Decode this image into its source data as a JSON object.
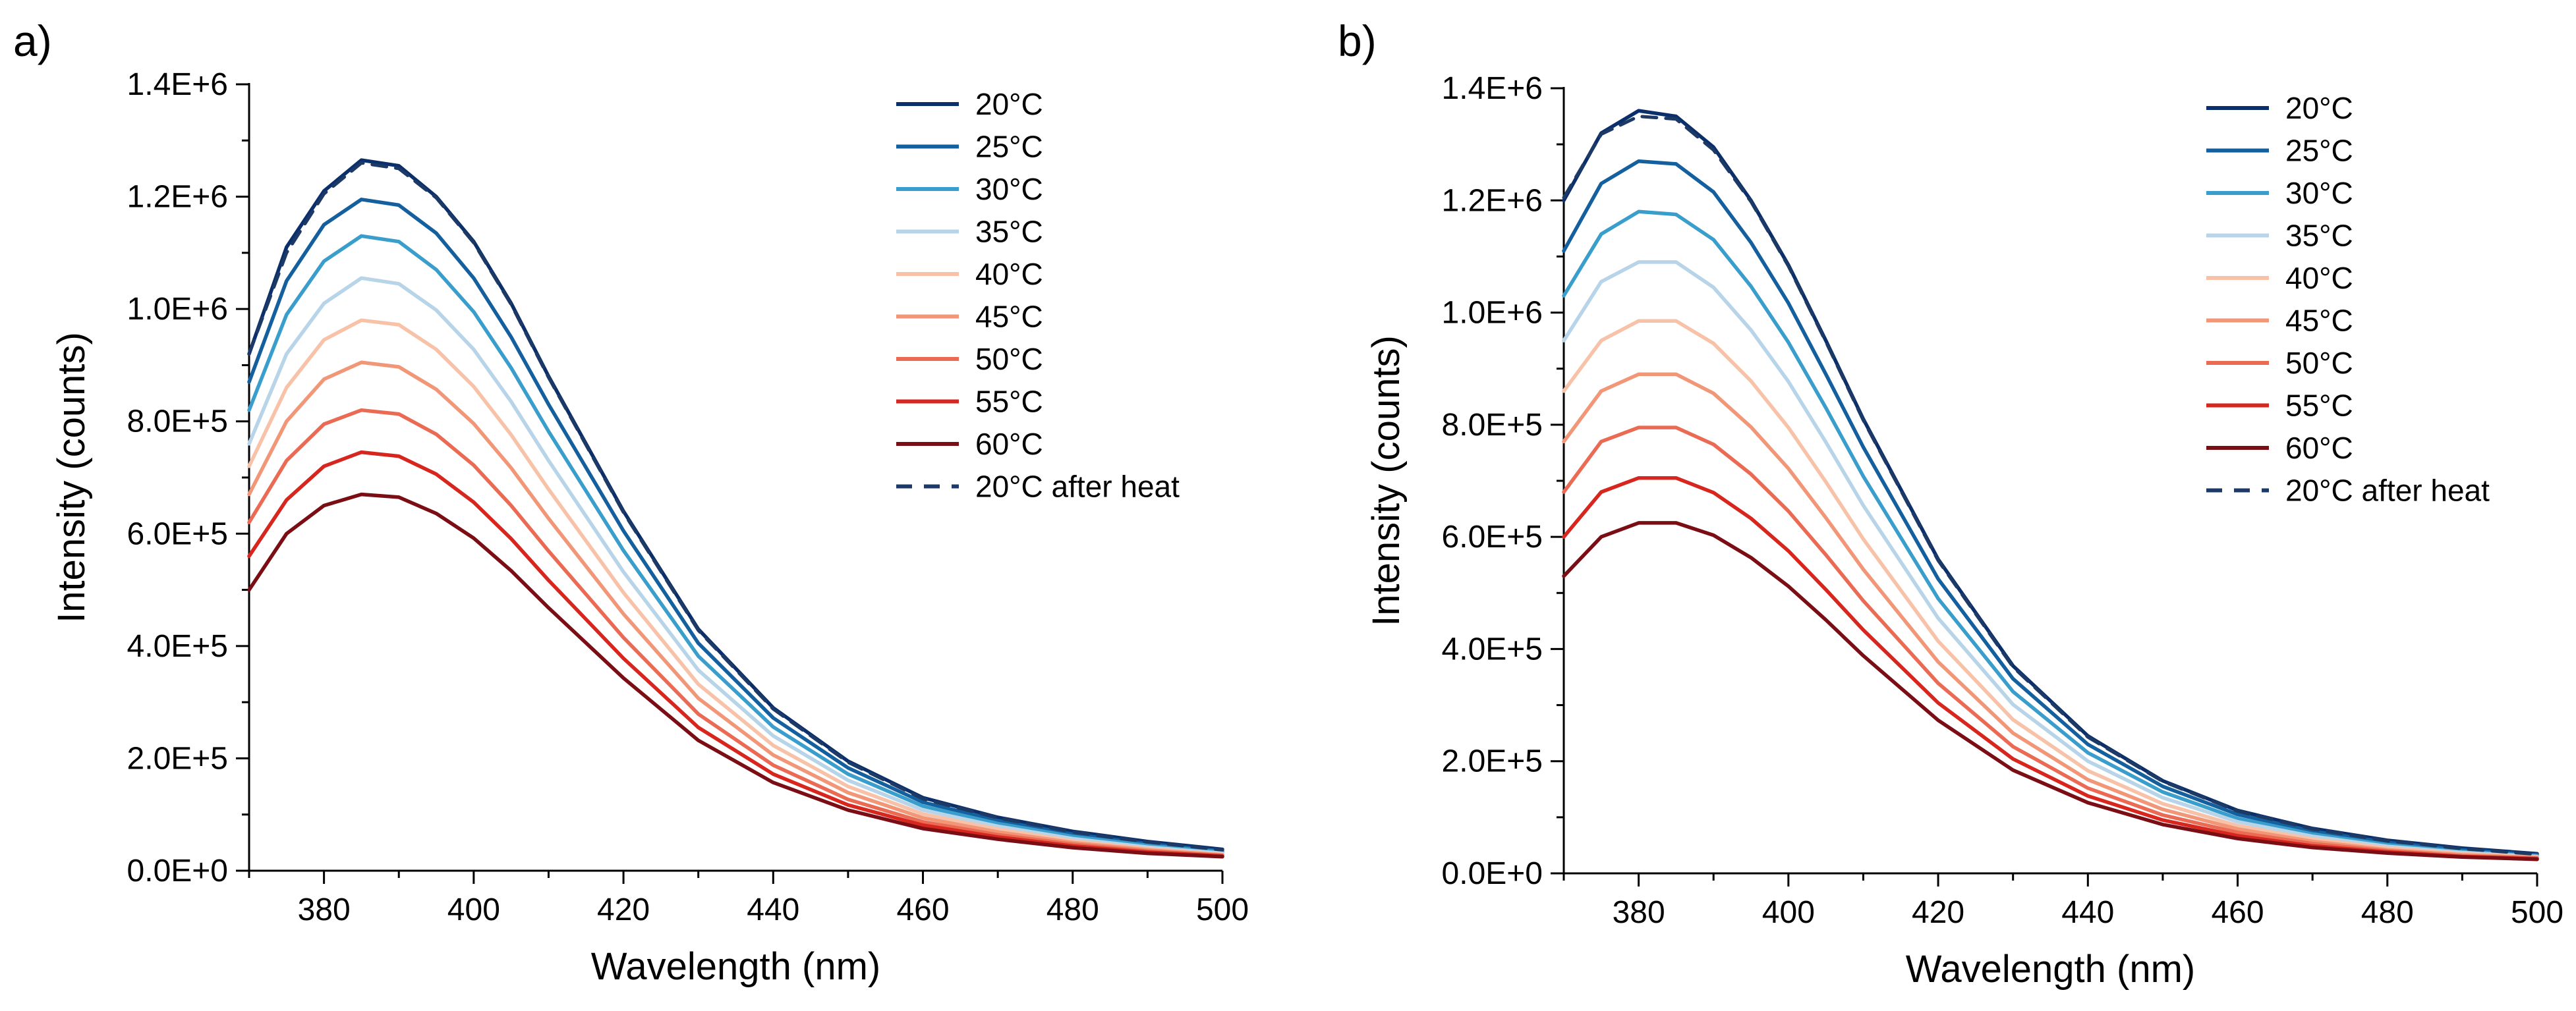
{
  "figure_labels": {
    "panel_a": "a)",
    "panel_b": "b)"
  },
  "chart_data": [
    {
      "type": "line",
      "panel": "a)",
      "xlabel": "Wavelength (nm)",
      "ylabel": "Intensity (counts)",
      "xlim": [
        370,
        500
      ],
      "ylim": [
        0,
        1400000
      ],
      "xticks": [
        380,
        400,
        420,
        440,
        460,
        480,
        500
      ],
      "xtick_labels": [
        "380",
        "400",
        "420",
        "440",
        "460",
        "480",
        "500"
      ],
      "yticks": [
        0,
        200000,
        400000,
        600000,
        800000,
        1000000,
        1200000,
        1400000
      ],
      "ytick_labels": [
        "0.0E+0",
        "2.0E+5",
        "4.0E+5",
        "6.0E+5",
        "8.0E+5",
        "1.0E+6",
        "1.2E+6",
        "1.4E+6"
      ],
      "legend_position": "top-right",
      "x": [
        370,
        375,
        380,
        385,
        390,
        395,
        400,
        405,
        410,
        420,
        430,
        440,
        450,
        460,
        470,
        480,
        490,
        500
      ],
      "series": [
        {
          "name": "20°C",
          "color": "#0b2f6b",
          "dash": false,
          "values": [
            920000,
            1110000,
            1210000,
            1265000,
            1255000,
            1200000,
            1120000,
            1010000,
            880000,
            640000,
            430000,
            290000,
            195000,
            130000,
            95000,
            70000,
            52000,
            38000
          ]
        },
        {
          "name": "25°C",
          "color": "#14609e",
          "dash": false,
          "values": [
            870000,
            1050000,
            1150000,
            1195000,
            1185000,
            1135000,
            1055000,
            950000,
            830000,
            605000,
            405000,
            272000,
            183000,
            122000,
            89000,
            65000,
            48000,
            35000
          ]
        },
        {
          "name": "30°C",
          "color": "#3a9ecc",
          "dash": false,
          "values": [
            820000,
            990000,
            1085000,
            1130000,
            1120000,
            1070000,
            995000,
            895000,
            782000,
            570000,
            382000,
            256000,
            172000,
            115000,
            84000,
            61000,
            45000,
            33000
          ]
        },
        {
          "name": "35°C",
          "color": "#b7d4e8",
          "dash": false,
          "values": [
            760000,
            920000,
            1010000,
            1055000,
            1045000,
            998000,
            928000,
            835000,
            730000,
            532000,
            357000,
            240000,
            161000,
            108000,
            79000,
            57000,
            42000,
            31000
          ]
        },
        {
          "name": "40°C",
          "color": "#f8c2a8",
          "dash": false,
          "values": [
            720000,
            860000,
            945000,
            980000,
            972000,
            928000,
            862000,
            776000,
            679000,
            495000,
            332000,
            223000,
            150000,
            101000,
            74000,
            53000,
            39000,
            29000
          ]
        },
        {
          "name": "45°C",
          "color": "#f29678",
          "dash": false,
          "values": [
            670000,
            800000,
            875000,
            905000,
            897000,
            857000,
            796000,
            717000,
            627000,
            457000,
            307000,
            206000,
            139000,
            94000,
            69000,
            50000,
            37000,
            28000
          ]
        },
        {
          "name": "50°C",
          "color": "#eb6a53",
          "dash": false,
          "values": [
            620000,
            730000,
            795000,
            820000,
            813000,
            777000,
            722000,
            650000,
            569000,
            415000,
            279000,
            188000,
            127000,
            87000,
            64000,
            47000,
            35000,
            27000
          ]
        },
        {
          "name": "55°C",
          "color": "#d7261e",
          "dash": false,
          "values": [
            560000,
            660000,
            720000,
            745000,
            738000,
            706000,
            656000,
            591000,
            517000,
            378000,
            255000,
            172000,
            117000,
            81000,
            60000,
            44000,
            33000,
            26000
          ]
        },
        {
          "name": "60°C",
          "color": "#7a0e14",
          "dash": false,
          "values": [
            500000,
            600000,
            650000,
            670000,
            665000,
            636000,
            592000,
            534000,
            468000,
            343000,
            232000,
            157000,
            108000,
            75000,
            56000,
            41000,
            31000,
            25000
          ]
        },
        {
          "name": "20°C after heat",
          "color": "#1d3a66",
          "dash": true,
          "values": [
            920000,
            1100000,
            1205000,
            1260000,
            1250000,
            1198000,
            1118000,
            1008000,
            878000,
            638000,
            428000,
            288000,
            193000,
            128000,
            94000,
            69000,
            51000,
            37000
          ]
        }
      ]
    },
    {
      "type": "line",
      "panel": "b)",
      "xlabel": "Wavelength (nm)",
      "ylabel": "Intensity (counts)",
      "xlim": [
        370,
        500
      ],
      "ylim": [
        0,
        1400000
      ],
      "xticks": [
        380,
        400,
        420,
        440,
        460,
        480,
        500
      ],
      "xtick_labels": [
        "380",
        "400",
        "420",
        "440",
        "460",
        "480",
        "500"
      ],
      "yticks": [
        0,
        200000,
        400000,
        600000,
        800000,
        1000000,
        1200000,
        1400000
      ],
      "ytick_labels": [
        "0.0E+0",
        "2.0E+5",
        "4.0E+5",
        "6.0E+5",
        "8.0E+5",
        "1.0E+6",
        "1.2E+6",
        "1.4E+6"
      ],
      "legend_position": "top-right",
      "x": [
        370,
        375,
        380,
        385,
        390,
        395,
        400,
        405,
        410,
        420,
        430,
        440,
        450,
        460,
        470,
        480,
        490,
        500
      ],
      "series": [
        {
          "name": "20°C",
          "color": "#0b2f6b",
          "dash": false,
          "values": [
            1200000,
            1320000,
            1360000,
            1350000,
            1295000,
            1200000,
            1085000,
            950000,
            810000,
            560000,
            370000,
            245000,
            165000,
            112000,
            80000,
            59000,
            45000,
            35000
          ]
        },
        {
          "name": "25°C",
          "color": "#14609e",
          "dash": false,
          "values": [
            1110000,
            1230000,
            1270000,
            1265000,
            1215000,
            1125000,
            1017000,
            890000,
            760000,
            525000,
            347000,
            230000,
            155000,
            105000,
            75000,
            55000,
            42000,
            33000
          ]
        },
        {
          "name": "30°C",
          "color": "#3a9ecc",
          "dash": false,
          "values": [
            1030000,
            1140000,
            1180000,
            1175000,
            1130000,
            1047000,
            947000,
            830000,
            708000,
            490000,
            324000,
            215000,
            145000,
            98000,
            70000,
            51000,
            39000,
            31000
          ]
        },
        {
          "name": "35°C",
          "color": "#b7d4e8",
          "dash": false,
          "values": [
            950000,
            1055000,
            1090000,
            1090000,
            1045000,
            969000,
            877000,
            769000,
            656000,
            455000,
            301000,
            200000,
            135000,
            92000,
            66000,
            48000,
            37000,
            30000
          ]
        },
        {
          "name": "40°C",
          "color": "#f8c2a8",
          "dash": false,
          "values": [
            860000,
            950000,
            985000,
            985000,
            945000,
            878000,
            795000,
            698000,
            596000,
            414000,
            274000,
            183000,
            124000,
            85000,
            61000,
            45000,
            35000,
            29000
          ]
        },
        {
          "name": "45°C",
          "color": "#f29678",
          "dash": false,
          "values": [
            770000,
            860000,
            890000,
            890000,
            856000,
            796000,
            722000,
            634000,
            542000,
            377000,
            250000,
            167000,
            114000,
            79000,
            57000,
            42000,
            33000,
            28000
          ]
        },
        {
          "name": "50°C",
          "color": "#eb6a53",
          "dash": false,
          "values": [
            680000,
            770000,
            795000,
            795000,
            765000,
            712000,
            646000,
            568000,
            486000,
            339000,
            226000,
            152000,
            104000,
            73000,
            53000,
            40000,
            31000,
            27000
          ]
        },
        {
          "name": "55°C",
          "color": "#d7261e",
          "dash": false,
          "values": [
            600000,
            680000,
            705000,
            705000,
            679000,
            633000,
            575000,
            506000,
            434000,
            304000,
            204000,
            138000,
            95000,
            67000,
            49000,
            38000,
            30000,
            26000
          ]
        },
        {
          "name": "60°C",
          "color": "#7a0e14",
          "dash": false,
          "values": [
            530000,
            600000,
            625000,
            625000,
            603000,
            563000,
            512000,
            452000,
            388000,
            273000,
            184000,
            126000,
            87000,
            62000,
            46000,
            36000,
            29000,
            25000
          ]
        },
        {
          "name": "20°C after heat",
          "color": "#1d3a66",
          "dash": true,
          "values": [
            1205000,
            1318000,
            1350000,
            1345000,
            1290000,
            1198000,
            1083000,
            948000,
            808000,
            558000,
            368000,
            243000,
            164000,
            111000,
            79000,
            58000,
            44000,
            34000
          ]
        }
      ]
    }
  ]
}
